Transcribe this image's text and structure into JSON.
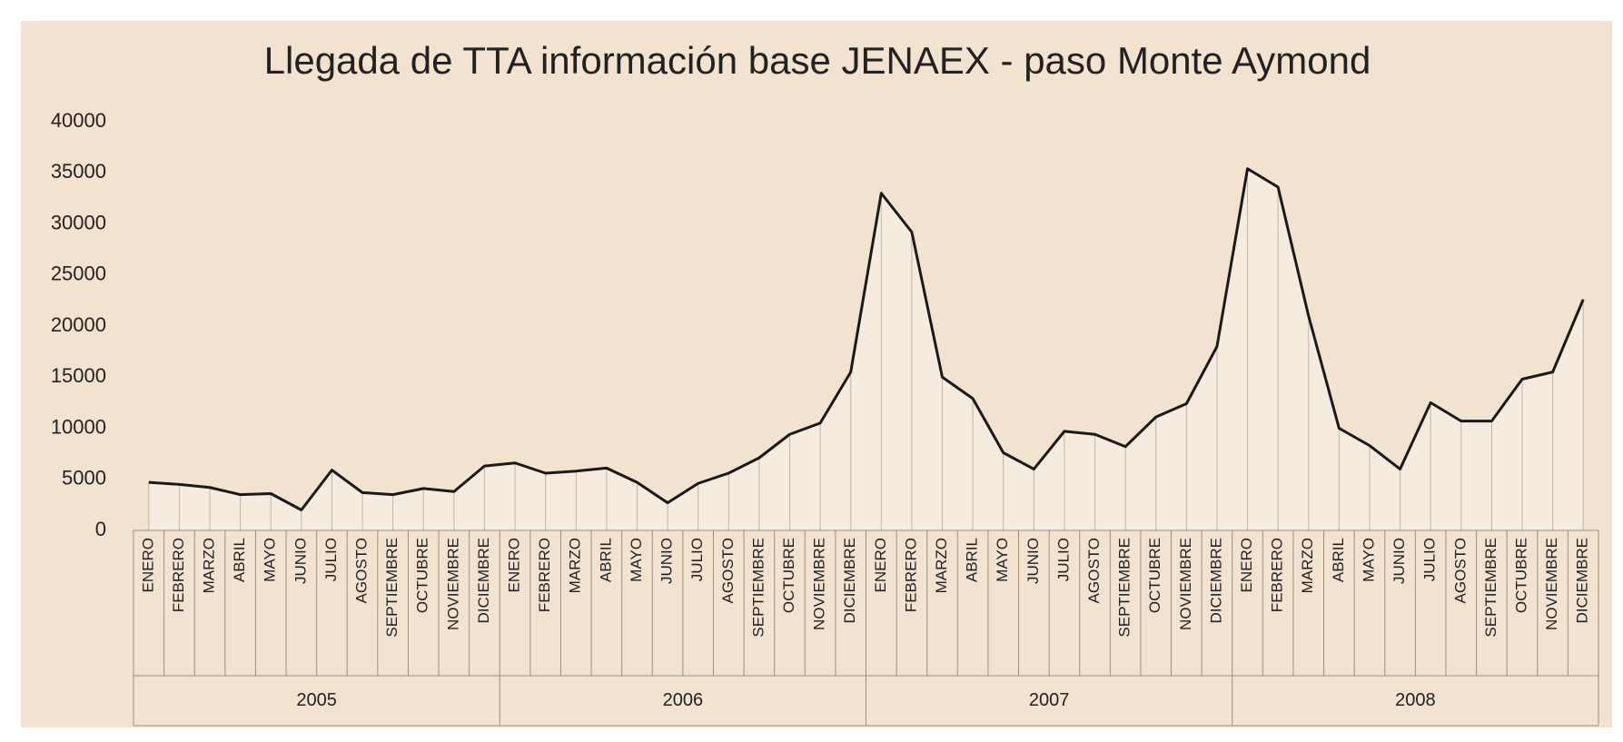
{
  "chart_data": {
    "type": "line",
    "title": "Llegada de TTA información base JENAEX - paso Monte Aymond",
    "categories": [
      "ENERO",
      "FEBRERO",
      "MARZO",
      "ABRIL",
      "MAYO",
      "JUNIO",
      "JULIO",
      "AGOSTO",
      "SEPTIEMBRE",
      "OCTUBRE",
      "NOVIEMBRE",
      "DICIEMBRE",
      "ENERO",
      "FEBRERO",
      "MARZO",
      "ABRIL",
      "MAYO",
      "JUNIO",
      "JULIO",
      "AGOSTO",
      "SEPTIEMBRE",
      "OCTUBRE",
      "NOVIEMBRE",
      "DICIEMBRE",
      "ENERO",
      "FEBRERO",
      "MARZO",
      "ABRIL",
      "MAYO",
      "JUNIO",
      "JULIO",
      "AGOSTO",
      "SEPTIEMBRE",
      "OCTUBRE",
      "NOVIEMBRE",
      "DICIEMBRE",
      "ENERO",
      "FEBRERO",
      "MARZO",
      "ABRIL",
      "MAYO",
      "JUNIO",
      "JULIO",
      "AGOSTO",
      "SEPTIEMBRE",
      "OCTUBRE",
      "NOVIEMBRE",
      "DICIEMBRE"
    ],
    "groups": [
      "2005",
      "2006",
      "2007",
      "2008"
    ],
    "values": [
      4700,
      4500,
      4200,
      3500,
      3600,
      2000,
      5900,
      3700,
      3500,
      4100,
      3800,
      6300,
      6600,
      5600,
      5800,
      6100,
      4700,
      2700,
      4600,
      5600,
      7100,
      9400,
      10500,
      15500,
      33000,
      29200,
      15000,
      12900,
      7600,
      6000,
      9700,
      9400,
      8200,
      11100,
      12400,
      18000,
      35400,
      33600,
      21000,
      10000,
      8300,
      6000,
      12500,
      10700,
      10700,
      14800,
      15500,
      22600
    ],
    "color": "#1a1a1a",
    "ylim": [
      0,
      40000
    ],
    "yticks": [
      0,
      5000,
      10000,
      15000,
      20000,
      25000,
      30000,
      35000,
      40000
    ]
  }
}
